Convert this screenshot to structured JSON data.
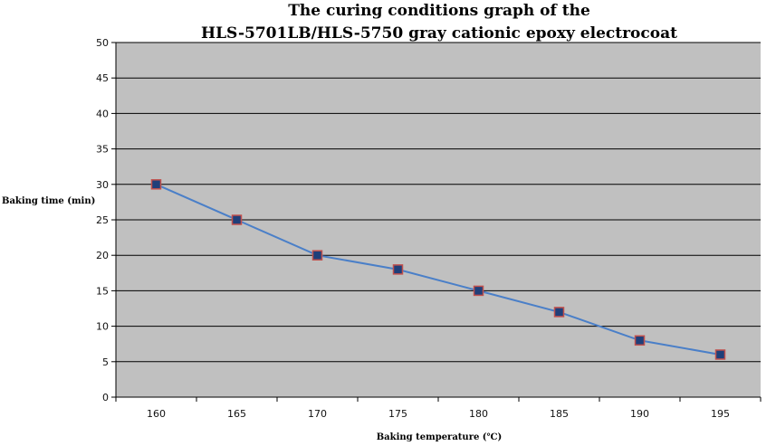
{
  "chart_data": {
    "type": "line",
    "title": [
      "The curing conditions graph of the",
      "HLS-5701LB/HLS-5750 gray cationic epoxy electrocoat"
    ],
    "xlabel": "Baking temperature (℃)",
    "ylabel": "Baking time (min)",
    "categories": [
      "160",
      "165",
      "170",
      "175",
      "180",
      "185",
      "190",
      "195"
    ],
    "values": [
      30,
      25,
      20,
      18,
      15,
      12,
      8,
      6
    ],
    "ylim": [
      0,
      50
    ],
    "yticks": [
      0,
      5,
      10,
      15,
      20,
      25,
      30,
      35,
      40,
      45,
      50
    ],
    "grid": "horizontal",
    "colors": {
      "plot_background": "#c0c0c0",
      "line": "#4a7fc8",
      "marker_fill": "#1f3f7a",
      "marker_edge": "#c0504d",
      "grid": "#000000"
    }
  }
}
